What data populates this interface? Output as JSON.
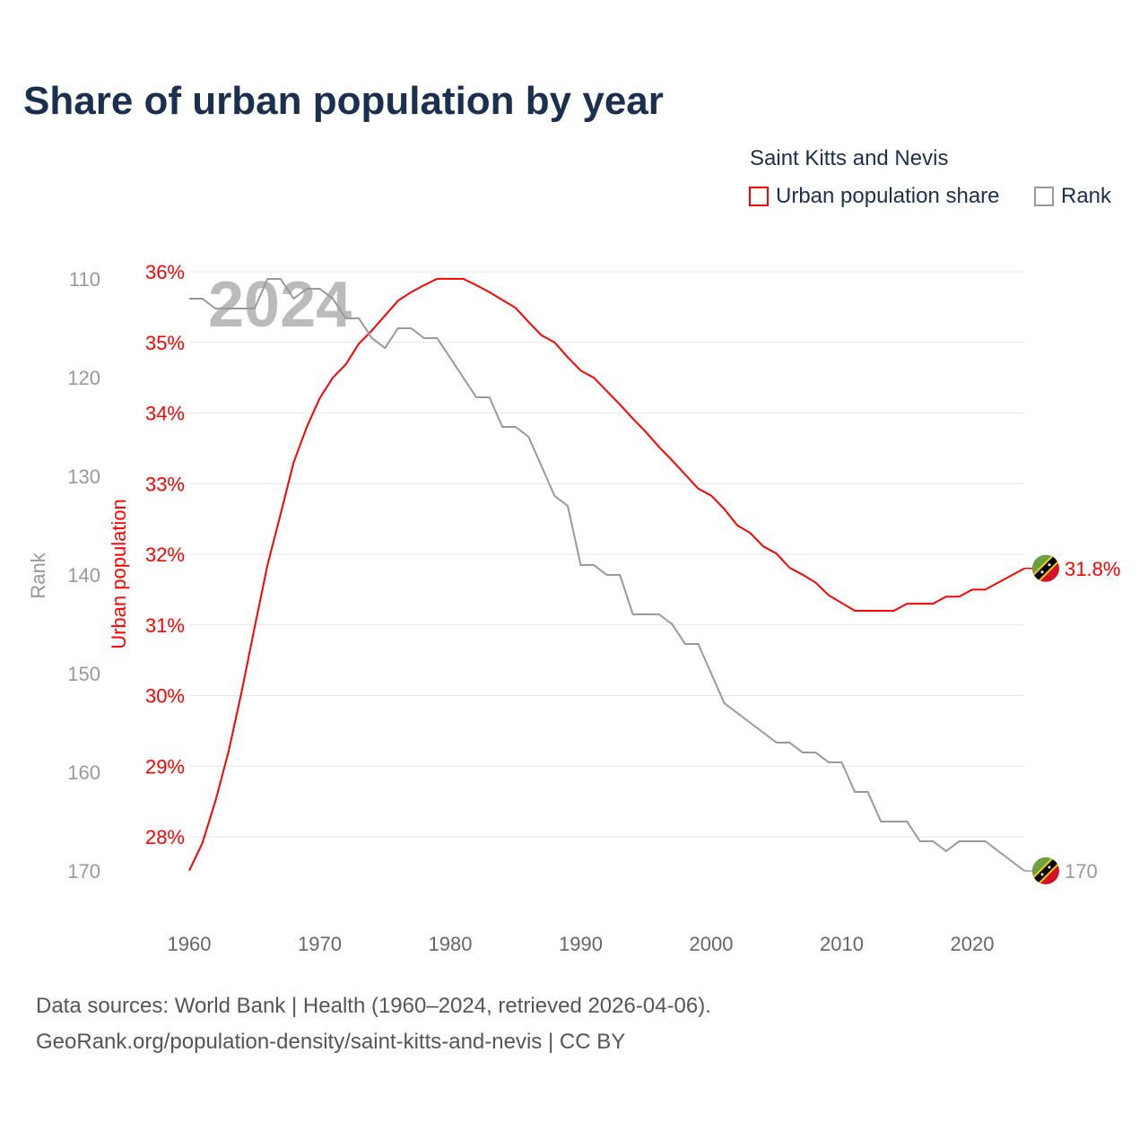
{
  "chart_data": {
    "type": "line",
    "title": "Share of urban population by year",
    "country": "Saint Kitts and Nevis",
    "x": [
      1960,
      1961,
      1962,
      1963,
      1964,
      1965,
      1966,
      1967,
      1968,
      1969,
      1970,
      1971,
      1972,
      1973,
      1974,
      1975,
      1976,
      1977,
      1978,
      1979,
      1980,
      1981,
      1982,
      1983,
      1984,
      1985,
      1986,
      1987,
      1988,
      1989,
      1990,
      1991,
      1992,
      1993,
      1994,
      1995,
      1996,
      1997,
      1998,
      1999,
      2000,
      2001,
      2002,
      2003,
      2004,
      2005,
      2006,
      2007,
      2008,
      2009,
      2010,
      2011,
      2012,
      2013,
      2014,
      2015,
      2016,
      2017,
      2018,
      2019,
      2020,
      2021,
      2022,
      2023,
      2024
    ],
    "series": [
      {
        "name": "Urban population share",
        "color": "#ff0000",
        "axis": "left",
        "values": [
          27.52,
          27.91,
          28.5,
          29.2,
          30.04,
          30.96,
          31.85,
          32.57,
          33.3,
          33.8,
          34.21,
          34.5,
          34.69,
          34.98,
          35.17,
          35.38,
          35.59,
          35.71,
          35.81,
          35.9,
          35.9,
          35.9,
          35.81,
          35.71,
          35.6,
          35.49,
          35.29,
          35.1,
          35.0,
          34.79,
          34.6,
          34.5,
          34.31,
          34.12,
          33.92,
          33.73,
          33.52,
          33.33,
          33.13,
          32.93,
          32.83,
          32.64,
          32.41,
          32.3,
          32.11,
          32.01,
          31.81,
          31.71,
          31.6,
          31.42,
          31.31,
          31.2,
          31.2,
          31.2,
          31.2,
          31.3,
          31.3,
          31.3,
          31.4,
          31.4,
          31.5,
          31.5,
          31.6,
          31.7,
          31.8
        ],
        "end_label": "31.8%"
      },
      {
        "name": "Rank",
        "color": "#999999",
        "axis": "rank",
        "values": [
          112,
          112,
          113,
          113,
          113,
          113,
          110,
          110,
          112,
          111,
          111,
          112,
          114,
          114,
          116,
          117,
          115,
          115,
          116,
          116,
          118,
          120,
          122,
          122,
          125,
          125,
          126,
          129,
          132,
          133,
          139,
          139,
          140,
          140,
          144,
          144,
          144,
          145,
          147,
          147,
          150,
          153,
          154,
          155,
          156,
          157,
          157,
          158,
          158,
          159,
          159,
          162,
          162,
          165,
          165,
          165,
          167,
          167,
          168,
          167,
          167,
          167,
          168,
          169,
          170
        ],
        "end_label": "170"
      }
    ],
    "xticks": [
      "1960",
      "1970",
      "1980",
      "1990",
      "2000",
      "2010",
      "2020"
    ],
    "left_ticks": [
      "36%",
      "35%",
      "34%",
      "33%",
      "32%",
      "31%",
      "30%",
      "29%",
      "28%"
    ],
    "rank_ticks": [
      "110",
      "120",
      "130",
      "140",
      "150",
      "160",
      "170"
    ],
    "ylabel": "Urban population",
    "rank_label": "Rank",
    "ylim": [
      27.52,
      36
    ],
    "rank_lim": [
      110,
      170
    ],
    "year_watermark": "2024",
    "legend_placement": "top-right",
    "grid": true
  },
  "sources": {
    "line1": "Data sources: World Bank | Health (1960–2024, retrieved 2026-04-06).",
    "line2": "GeoRank.org/population-density/saint-kitts-and-nevis | CC BY"
  }
}
